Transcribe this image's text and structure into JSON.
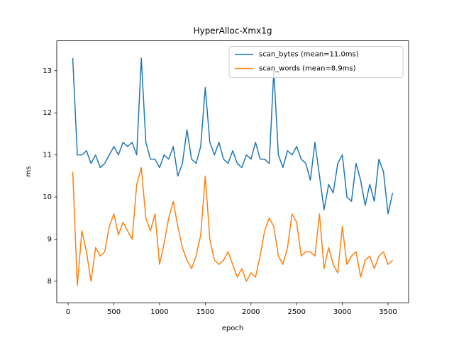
{
  "chart_data": {
    "type": "line",
    "title": "HyperAlloc-Xmx1g",
    "x_label": "epoch",
    "y_label": "ms",
    "x": [
      50,
      100,
      150,
      200,
      250,
      300,
      350,
      400,
      450,
      500,
      550,
      600,
      650,
      700,
      750,
      800,
      850,
      900,
      950,
      1000,
      1050,
      1100,
      1150,
      1200,
      1250,
      1300,
      1350,
      1400,
      1450,
      1500,
      1550,
      1600,
      1650,
      1700,
      1750,
      1800,
      1850,
      1900,
      1950,
      2000,
      2050,
      2100,
      2150,
      2200,
      2250,
      2300,
      2350,
      2400,
      2450,
      2500,
      2550,
      2600,
      2650,
      2700,
      2750,
      2800,
      2850,
      2900,
      2950,
      3000,
      3050,
      3100,
      3150,
      3200,
      3250,
      3300,
      3350,
      3400,
      3450,
      3500,
      3550
    ],
    "series": [
      {
        "name": "scan_bytes (mean=11.0ms)",
        "color": "#1f77b4",
        "values": [
          13.3,
          11.0,
          11.0,
          11.1,
          10.8,
          11.0,
          10.7,
          10.8,
          11.0,
          11.2,
          11.0,
          11.3,
          11.2,
          11.3,
          11.0,
          13.3,
          11.3,
          10.9,
          10.9,
          10.7,
          11.0,
          10.9,
          11.2,
          10.5,
          10.8,
          11.6,
          10.9,
          10.8,
          11.2,
          12.6,
          11.3,
          11.0,
          11.3,
          10.9,
          10.8,
          11.1,
          10.8,
          10.7,
          11.0,
          10.9,
          11.3,
          10.9,
          10.9,
          10.8,
          13.0,
          11.0,
          10.7,
          11.1,
          11.0,
          11.2,
          10.9,
          10.8,
          10.4,
          11.3,
          10.5,
          9.7,
          10.3,
          10.1,
          10.8,
          11.0,
          10.0,
          9.9,
          10.8,
          10.4,
          9.8,
          10.3,
          9.9,
          10.9,
          10.6,
          9.6,
          10.1
        ]
      },
      {
        "name": "scan_words (mean=8.9ms)",
        "color": "#ff7f0e",
        "values": [
          10.6,
          7.9,
          9.2,
          8.7,
          8.0,
          8.8,
          8.6,
          8.7,
          9.3,
          9.6,
          9.1,
          9.4,
          9.2,
          9.0,
          10.3,
          10.7,
          9.5,
          9.2,
          9.6,
          8.4,
          8.9,
          9.5,
          9.9,
          9.3,
          8.8,
          8.5,
          8.3,
          8.6,
          9.1,
          10.5,
          9.0,
          8.5,
          8.4,
          8.5,
          8.7,
          8.4,
          8.1,
          8.3,
          8.0,
          8.2,
          8.1,
          8.6,
          9.2,
          9.5,
          9.3,
          8.6,
          8.4,
          8.8,
          9.6,
          9.4,
          8.6,
          8.7,
          8.7,
          8.6,
          9.6,
          8.3,
          8.8,
          8.4,
          8.2,
          9.3,
          8.4,
          8.6,
          8.7,
          8.1,
          8.5,
          8.6,
          8.3,
          8.6,
          8.7,
          8.4,
          8.5
        ]
      }
    ],
    "xlim": [
      -125,
      3725
    ],
    "ylim": [
      7.49,
      13.71
    ],
    "xticks": [
      0,
      500,
      1000,
      1500,
      2000,
      2500,
      3000,
      3500
    ],
    "yticks": [
      8,
      9,
      10,
      11,
      12,
      13
    ],
    "legend": "upper right"
  }
}
